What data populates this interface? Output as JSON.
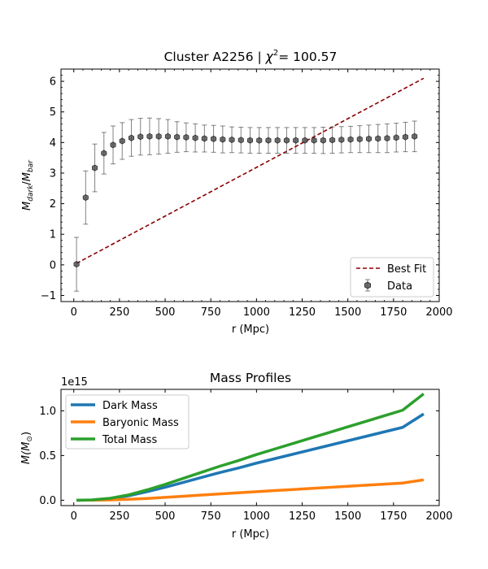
{
  "chart_data": [
    {
      "type": "scatter",
      "title": "Cluster A2256 | χ²= 100.57",
      "title_parts": {
        "prefix": "Cluster A2256 | ",
        "chi": "χ",
        "sup": "2",
        "suffix": "= 100.57"
      },
      "xlabel": "r (Mpc)",
      "ylabel": "M_dark/M_bar",
      "ylabel_parts": {
        "m1": "M",
        "sub1": "dark",
        "slash": "/",
        "m2": "M",
        "sub2": "bar"
      },
      "xlim": [
        -70,
        2000
      ],
      "ylim": [
        -1.2,
        6.4
      ],
      "x_ticks": [
        0,
        250,
        500,
        750,
        1000,
        1250,
        1500,
        1750,
        2000
      ],
      "y_ticks": [
        -1,
        0,
        1,
        2,
        3,
        4,
        5,
        6
      ],
      "grid": false,
      "legend_position": "lower-right",
      "legend": [
        "Best Fit",
        "Data"
      ],
      "series": [
        {
          "name": "Data",
          "style": "errorbar",
          "color": "#404040",
          "x": [
            15,
            65,
            115,
            165,
            215,
            265,
            315,
            365,
            415,
            465,
            515,
            565,
            615,
            665,
            715,
            765,
            815,
            865,
            915,
            965,
            1015,
            1065,
            1115,
            1165,
            1215,
            1265,
            1315,
            1365,
            1415,
            1465,
            1515,
            1565,
            1615,
            1665,
            1715,
            1765,
            1815,
            1865
          ],
          "y": [
            0.02,
            2.2,
            3.17,
            3.65,
            3.92,
            4.05,
            4.15,
            4.19,
            4.2,
            4.2,
            4.2,
            4.18,
            4.17,
            4.15,
            4.13,
            4.12,
            4.1,
            4.09,
            4.08,
            4.07,
            4.07,
            4.07,
            4.07,
            4.07,
            4.07,
            4.07,
            4.07,
            4.07,
            4.08,
            4.09,
            4.1,
            4.11,
            4.12,
            4.13,
            4.14,
            4.16,
            4.18,
            4.2
          ],
          "yerr": [
            0.88,
            0.87,
            0.78,
            0.68,
            0.62,
            0.6,
            0.6,
            0.6,
            0.6,
            0.58,
            0.55,
            0.5,
            0.47,
            0.46,
            0.44,
            0.44,
            0.44,
            0.42,
            0.42,
            0.42,
            0.42,
            0.42,
            0.42,
            0.42,
            0.42,
            0.42,
            0.42,
            0.43,
            0.43,
            0.43,
            0.43,
            0.44,
            0.45,
            0.46,
            0.47,
            0.47,
            0.48,
            0.5
          ]
        },
        {
          "name": "Best Fit",
          "style": "dashed-line",
          "color": "#8b0000",
          "x": [
            15,
            1915
          ],
          "y": [
            0.05,
            6.1
          ]
        }
      ]
    },
    {
      "type": "line",
      "title": "Mass Profiles",
      "xlabel": "r (Mpc)",
      "ylabel": "M(M_⊙)",
      "ylabel_parts": {
        "m": "M(M",
        "sub": "⊙",
        "close": ")"
      },
      "offset_text": "1e15",
      "xlim": [
        -70,
        2000
      ],
      "ylim": [
        -0.06,
        1.24
      ],
      "x_ticks": [
        0,
        250,
        500,
        750,
        1000,
        1250,
        1500,
        1750,
        2000
      ],
      "y_ticks": [
        0.0,
        0.5,
        1.0
      ],
      "y_tick_labels": [
        "0.0",
        "0.5",
        "1.0"
      ],
      "grid": false,
      "legend_position": "upper-left",
      "series": [
        {
          "name": "Dark Mass",
          "color": "#1f77b4",
          "x": [
            15,
            100,
            200,
            300,
            400,
            500,
            600,
            700,
            800,
            900,
            1000,
            1100,
            1200,
            1300,
            1400,
            1500,
            1600,
            1700,
            1800,
            1915
          ],
          "y": [
            0.0,
            0.003,
            0.018,
            0.05,
            0.095,
            0.145,
            0.2,
            0.255,
            0.31,
            0.36,
            0.415,
            0.465,
            0.515,
            0.565,
            0.615,
            0.665,
            0.715,
            0.765,
            0.815,
            0.965
          ]
        },
        {
          "name": "Baryonic Mass",
          "color": "#ff7f0e",
          "x": [
            15,
            100,
            200,
            300,
            400,
            500,
            600,
            700,
            800,
            900,
            1000,
            1100,
            1200,
            1300,
            1400,
            1500,
            1600,
            1700,
            1800,
            1915
          ],
          "y": [
            0.0,
            0.001,
            0.004,
            0.01,
            0.02,
            0.032,
            0.045,
            0.058,
            0.071,
            0.083,
            0.096,
            0.108,
            0.12,
            0.132,
            0.144,
            0.156,
            0.168,
            0.18,
            0.192,
            0.228
          ]
        },
        {
          "name": "Total Mass",
          "color": "#2ca02c",
          "x": [
            15,
            100,
            200,
            300,
            400,
            500,
            600,
            700,
            800,
            900,
            1000,
            1100,
            1200,
            1300,
            1400,
            1500,
            1600,
            1700,
            1800,
            1915
          ],
          "y": [
            0.0,
            0.004,
            0.022,
            0.06,
            0.115,
            0.177,
            0.245,
            0.313,
            0.381,
            0.443,
            0.511,
            0.573,
            0.635,
            0.697,
            0.759,
            0.821,
            0.883,
            0.945,
            1.007,
            1.19
          ]
        }
      ]
    }
  ]
}
